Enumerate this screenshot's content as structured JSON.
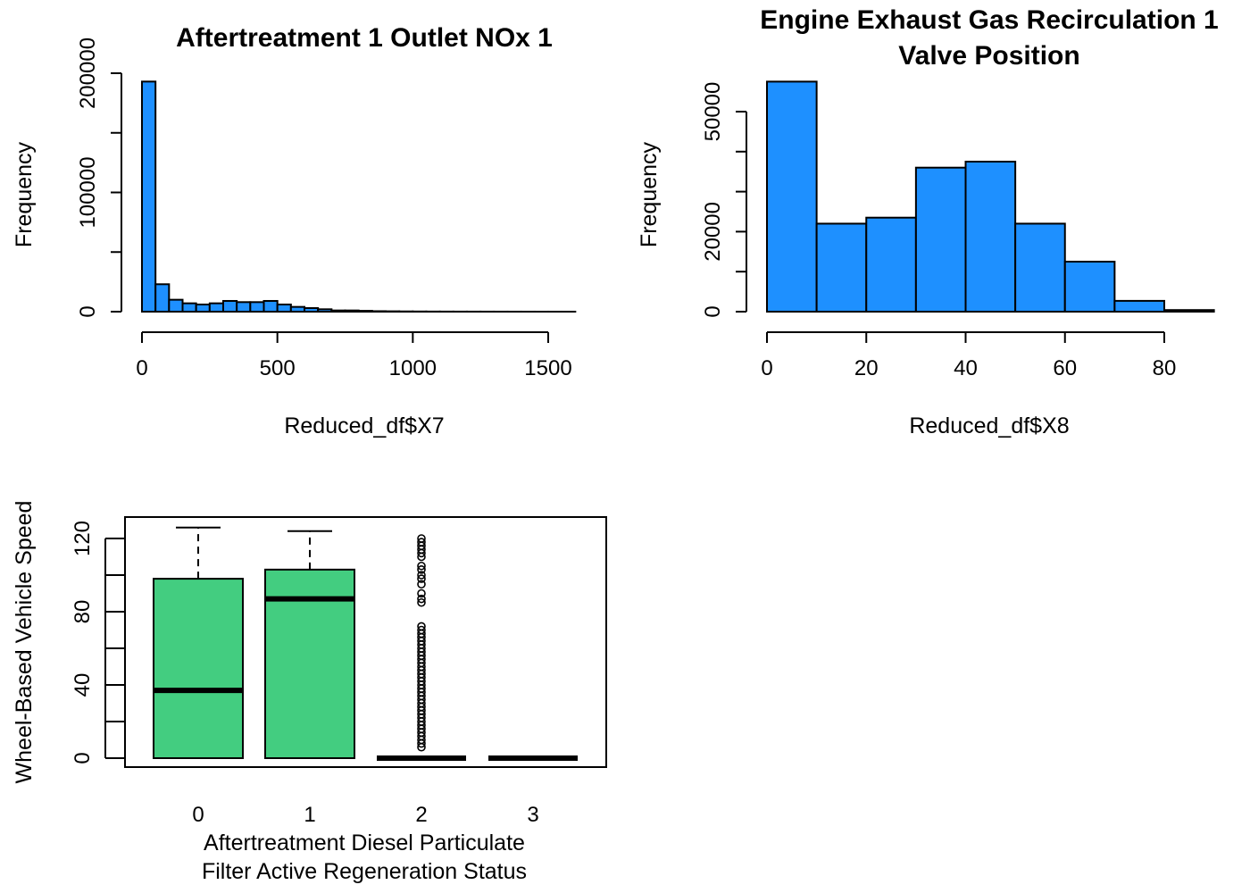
{
  "chart_data": [
    {
      "type": "bar",
      "subtype": "histogram",
      "title": "Aftertreatment 1 Outlet NOx 1",
      "xlabel": "Reduced_df$X7",
      "ylabel": "Frequency",
      "bin_width": 50,
      "bin_start": 0,
      "values": [
        193000,
        23000,
        10000,
        7000,
        6000,
        7000,
        9000,
        8000,
        8000,
        9000,
        6000,
        4000,
        3000,
        2000,
        1000,
        1000,
        700,
        400,
        300,
        200,
        150,
        100,
        80,
        60,
        50,
        40,
        30,
        20,
        15,
        10,
        8,
        5
      ],
      "xlim": [
        0,
        1650
      ],
      "ylim": [
        0,
        200000
      ],
      "xticks": [
        "0",
        "500",
        "1000",
        "1500"
      ],
      "xtick_values": [
        0,
        500,
        1000,
        1500
      ],
      "yticks": [
        "0",
        "100000",
        "200000"
      ],
      "ytick_values": [
        0,
        50000,
        100000,
        150000,
        200000
      ],
      "ytick_labeled": [
        true,
        false,
        true,
        false,
        true
      ],
      "grid": false,
      "bar_color": "#1e90ff"
    },
    {
      "type": "bar",
      "subtype": "histogram",
      "title": "Engine Exhaust Gas Recirculation 1",
      "title_line2": "Valve Position",
      "xlabel": "Reduced_df$X8",
      "ylabel": "Frequency",
      "bin_width": 10,
      "bin_start": 0,
      "values": [
        57500,
        22000,
        23500,
        36000,
        37500,
        22000,
        12500,
        2700,
        400
      ],
      "xlim": [
        0,
        90
      ],
      "ylim": [
        0,
        50000
      ],
      "xticks": [
        "0",
        "20",
        "40",
        "60",
        "80"
      ],
      "xtick_values": [
        0,
        20,
        40,
        60,
        80
      ],
      "yticks": [
        "0",
        "20000",
        "50000"
      ],
      "ytick_values": [
        0,
        10000,
        20000,
        30000,
        40000,
        50000
      ],
      "ytick_labels_map": [
        "0",
        "",
        "20000",
        "",
        "",
        "50000"
      ],
      "grid": false,
      "bar_color": "#1e90ff"
    },
    {
      "type": "boxplot",
      "xlabel": "Aftertreatment Diesel Particulate",
      "xlabel_line2": "Filter Active Regeneration Status",
      "ylabel": "Wheel-Based Vehicle Speed",
      "categories": [
        "0",
        "1",
        "2",
        "3"
      ],
      "boxes": [
        {
          "min": 0,
          "q1": 0,
          "median": 37,
          "q3": 98,
          "max": 126
        },
        {
          "min": 0,
          "q1": 0,
          "median": 87,
          "q3": 103,
          "max": 124
        },
        {
          "min": 0,
          "q1": 0,
          "median": 0,
          "q3": 0,
          "max": 0,
          "outliers": [
            6,
            8,
            10,
            12,
            14,
            16,
            18,
            20,
            22,
            24,
            26,
            28,
            30,
            32,
            34,
            36,
            38,
            40,
            42,
            44,
            46,
            48,
            50,
            52,
            54,
            56,
            58,
            60,
            62,
            64,
            66,
            68,
            70,
            72,
            85,
            87,
            90,
            95,
            98,
            100,
            103,
            105,
            110,
            112,
            114,
            116,
            118,
            120
          ]
        },
        {
          "min": 0,
          "q1": 0,
          "median": 0,
          "q3": 0,
          "max": 0
        }
      ],
      "ylim": [
        0,
        120
      ],
      "yticks": [
        "0",
        "40",
        "80",
        "120"
      ],
      "ytick_values": [
        0,
        20,
        40,
        60,
        80,
        100,
        120
      ],
      "ytick_labeled": [
        true,
        false,
        true,
        false,
        true,
        false,
        true
      ],
      "grid": false,
      "box_color": "#43cd80"
    }
  ]
}
